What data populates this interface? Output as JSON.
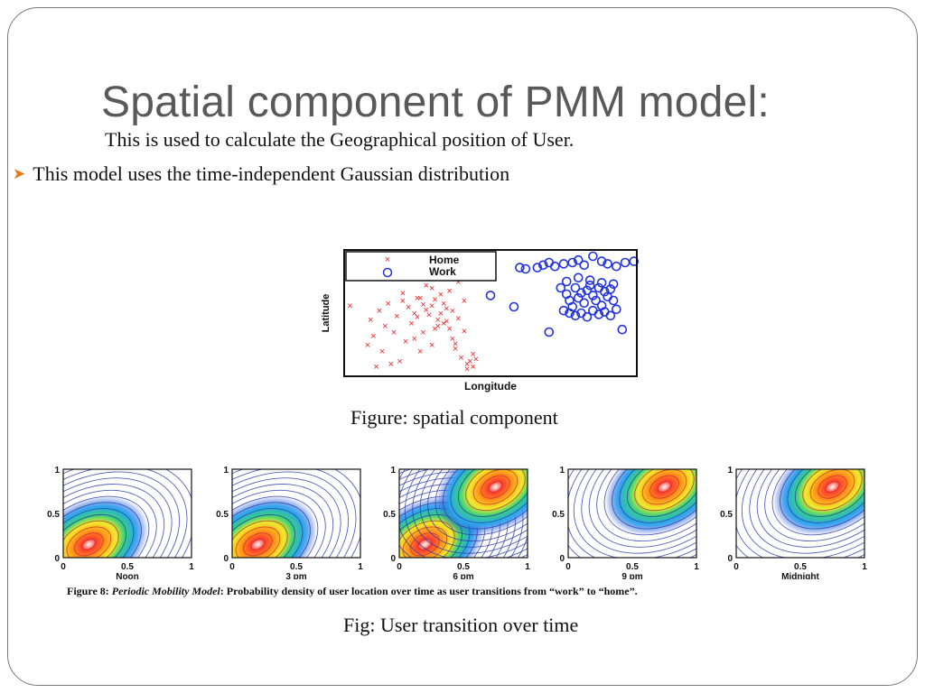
{
  "slide": {
    "title": "Spatial component of PMM model:",
    "subtitle": "This is used to calculate the Geographical position of User.",
    "bullet": "This model uses the time-independent Gaussian distribution",
    "figure1_caption": "Figure: spatial component",
    "figure2_caption": "Fig: User transition over time",
    "figure8": {
      "label": "Figure 8:",
      "name": "Periodic Mobility Model",
      "text": ": Probability density of user location over time as user transitions from “work” to “home”."
    }
  },
  "colors": {
    "title": "#595959",
    "bullet": "#e07a1f",
    "home": "#e8282c",
    "work": "#2233dd"
  },
  "chart_data": [
    {
      "type": "scatter",
      "xlabel": "Longitude",
      "ylabel": "Latitude",
      "legend": {
        "placement": "top-left",
        "entries": [
          "Home",
          "Work"
        ]
      },
      "series": [
        {
          "name": "Home",
          "marker": "x",
          "color": "#e8282c",
          "x": [
            0.09,
            0.12,
            0.15,
            0.18,
            0.2,
            0.22,
            0.24,
            0.25,
            0.26,
            0.27,
            0.28,
            0.29,
            0.3,
            0.31,
            0.32,
            0.33,
            0.34,
            0.35,
            0.36,
            0.37,
            0.38,
            0.4,
            0.42,
            0.44,
            0.08,
            0.1,
            0.14,
            0.17,
            0.21,
            0.23,
            0.27,
            0.3,
            0.33,
            0.36,
            0.39,
            0.41,
            0.43,
            0.11,
            0.19,
            0.26,
            0.31,
            0.35,
            0.38,
            0.42,
            0.45,
            0.2,
            0.28,
            0.34,
            0.39,
            0.13,
            0.24,
            0.3,
            0.37,
            0.41,
            0.02,
            0.16,
            0.25,
            0.32,
            0.44
          ],
          "y": [
            0.45,
            0.52,
            0.58,
            0.48,
            0.6,
            0.55,
            0.5,
            0.47,
            0.62,
            0.57,
            0.53,
            0.49,
            0.56,
            0.61,
            0.45,
            0.5,
            0.42,
            0.54,
            0.38,
            0.3,
            0.22,
            0.15,
            0.1,
            0.18,
            0.25,
            0.32,
            0.4,
            0.35,
            0.28,
            0.42,
            0.35,
            0.7,
            0.65,
            0.68,
            0.75,
            0.6,
            0.12,
            0.08,
            0.12,
            0.2,
            0.38,
            0.44,
            0.26,
            0.06,
            0.14,
            0.66,
            0.72,
            0.58,
            0.46,
            0.2,
            0.3,
            0.25,
            0.52,
            0.36,
            0.56,
            0.1,
            0.62,
            0.4,
            0.08
          ]
        },
        {
          "name": "Work",
          "marker": "o",
          "color": "#2233dd",
          "x": [
            0.6,
            0.62,
            0.66,
            0.68,
            0.7,
            0.72,
            0.75,
            0.78,
            0.8,
            0.82,
            0.85,
            0.88,
            0.9,
            0.93,
            0.96,
            0.99,
            0.74,
            0.76,
            0.77,
            0.78,
            0.79,
            0.8,
            0.81,
            0.82,
            0.83,
            0.84,
            0.85,
            0.86,
            0.87,
            0.88,
            0.89,
            0.9,
            0.91,
            0.92,
            0.75,
            0.77,
            0.79,
            0.81,
            0.83,
            0.85,
            0.87,
            0.89,
            0.91,
            0.93,
            0.76,
            0.8,
            0.84,
            0.88,
            0.92,
            0.5,
            0.58,
            0.7,
            0.95
          ],
          "y": [
            0.86,
            0.85,
            0.86,
            0.88,
            0.9,
            0.87,
            0.89,
            0.9,
            0.92,
            0.88,
            0.95,
            0.91,
            0.89,
            0.87,
            0.9,
            0.91,
            0.7,
            0.65,
            0.6,
            0.55,
            0.7,
            0.62,
            0.66,
            0.58,
            0.68,
            0.72,
            0.64,
            0.6,
            0.7,
            0.56,
            0.67,
            0.63,
            0.69,
            0.6,
            0.52,
            0.5,
            0.48,
            0.5,
            0.47,
            0.52,
            0.49,
            0.51,
            0.48,
            0.53,
            0.75,
            0.78,
            0.76,
            0.74,
            0.73,
            0.64,
            0.55,
            0.35,
            0.37
          ]
        }
      ]
    },
    {
      "type": "heatmap",
      "panels": [
        {
          "xlabel": "Noon",
          "hot_spots": [
            [
              0.2,
              0.15
            ]
          ]
        },
        {
          "xlabel": "3 pm",
          "hot_spots": [
            [
              0.2,
              0.15
            ]
          ]
        },
        {
          "xlabel": "6 pm",
          "hot_spots": [
            [
              0.2,
              0.15
            ],
            [
              0.75,
              0.8
            ]
          ]
        },
        {
          "xlabel": "9 pm",
          "hot_spots": [
            [
              0.75,
              0.8
            ]
          ]
        },
        {
          "xlabel": "Midnight",
          "hot_spots": [
            [
              0.75,
              0.8
            ]
          ]
        }
      ],
      "xticks": [
        "0",
        "0.5",
        "1"
      ],
      "yticks": [
        "0",
        "0.5",
        "1"
      ],
      "xlim": [
        0,
        1
      ],
      "ylim": [
        0,
        1
      ]
    }
  ]
}
